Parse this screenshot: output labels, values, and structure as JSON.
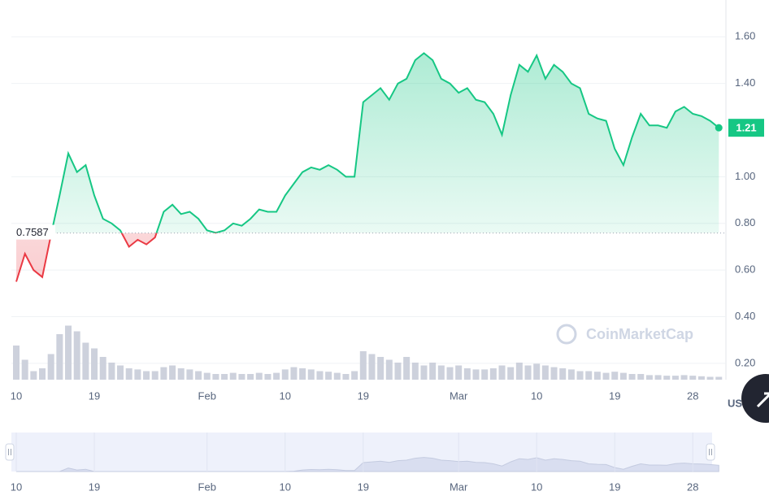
{
  "chart_data": {
    "type": "line",
    "series": [
      {
        "name": "Price",
        "color": "#16c784",
        "down_color": "#ea3943",
        "values": [
          0.55,
          0.67,
          0.6,
          0.57,
          0.75,
          0.92,
          1.1,
          1.02,
          1.05,
          0.92,
          0.82,
          0.8,
          0.77,
          0.7,
          0.73,
          0.71,
          0.74,
          0.85,
          0.88,
          0.84,
          0.85,
          0.82,
          0.77,
          0.76,
          0.77,
          0.8,
          0.79,
          0.82,
          0.86,
          0.85,
          0.85,
          0.92,
          0.97,
          1.02,
          1.04,
          1.03,
          1.05,
          1.03,
          1.0,
          1.0,
          1.32,
          1.35,
          1.38,
          1.33,
          1.4,
          1.42,
          1.5,
          1.53,
          1.5,
          1.42,
          1.4,
          1.36,
          1.38,
          1.33,
          1.32,
          1.27,
          1.18,
          1.35,
          1.48,
          1.45,
          1.52,
          1.42,
          1.48,
          1.45,
          1.4,
          1.38,
          1.27,
          1.25,
          1.24,
          1.12,
          1.05,
          1.17,
          1.27,
          1.22,
          1.22,
          1.21,
          1.28,
          1.3,
          1.27,
          1.26,
          1.24,
          1.21
        ]
      }
    ],
    "volume": {
      "color": "#cdd1dc",
      "values": [
        60,
        35,
        15,
        20,
        45,
        80,
        95,
        85,
        65,
        55,
        40,
        30,
        25,
        20,
        18,
        15,
        15,
        22,
        25,
        20,
        18,
        15,
        12,
        10,
        10,
        12,
        10,
        10,
        12,
        10,
        12,
        18,
        22,
        20,
        18,
        15,
        14,
        12,
        10,
        15,
        50,
        45,
        40,
        35,
        30,
        40,
        30,
        25,
        30,
        25,
        22,
        25,
        20,
        18,
        18,
        20,
        25,
        22,
        30,
        25,
        28,
        25,
        22,
        20,
        18,
        15,
        15,
        14,
        12,
        14,
        12,
        10,
        10,
        8,
        8,
        7,
        7,
        8,
        7,
        6,
        5,
        5
      ],
      "vlim": [
        0,
        100
      ]
    },
    "baseline": 0.7587,
    "current_price": 1.21,
    "currency": "USD",
    "watermark": "CoinMarketCap",
    "xlim": [
      0,
      81
    ],
    "xticks": [
      {
        "value": 0,
        "label": "10"
      },
      {
        "value": 9,
        "label": "19"
      },
      {
        "value": 22,
        "label": "Feb"
      },
      {
        "value": 31,
        "label": "10"
      },
      {
        "value": 40,
        "label": "19"
      },
      {
        "value": 51,
        "label": "Mar"
      },
      {
        "value": 60,
        "label": "10"
      },
      {
        "value": 69,
        "label": "19"
      },
      {
        "value": 78,
        "label": "28"
      }
    ],
    "ylim": [
      0.13,
      1.73
    ],
    "yticks": [
      {
        "value": 0.2,
        "label": "0.20"
      },
      {
        "value": 0.4,
        "label": "0.40"
      },
      {
        "value": 0.6,
        "label": "0.60"
      },
      {
        "value": 0.8,
        "label": "0.80"
      },
      {
        "value": 1.0,
        "label": "1.00"
      },
      {
        "value": 1.4,
        "label": "1.40"
      },
      {
        "value": 1.6,
        "label": "1.60"
      }
    ],
    "grid": true
  }
}
